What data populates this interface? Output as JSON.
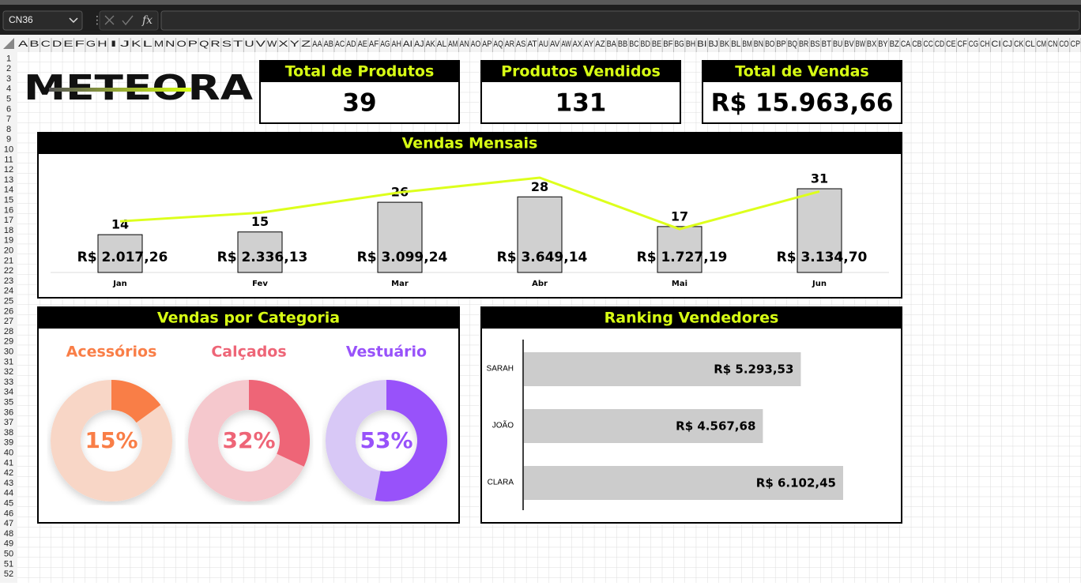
{
  "toolbar": {
    "name_box": "CN36",
    "function_label": "fx"
  },
  "sheet": {
    "columns": [
      "A",
      "B",
      "C",
      "D",
      "E",
      "F",
      "G",
      "H",
      "I",
      "J",
      "K",
      "L",
      "M",
      "N",
      "O",
      "P",
      "Q",
      "R",
      "S",
      "T",
      "U",
      "V",
      "W",
      "X",
      "Y",
      "Z",
      "AA",
      "AB",
      "AC",
      "AD",
      "AE",
      "AF",
      "AG",
      "AH",
      "AI",
      "AJ",
      "AK",
      "AL",
      "AM",
      "AN",
      "AO",
      "AP",
      "AQ",
      "AR",
      "AS",
      "AT",
      "AU",
      "AV",
      "AW",
      "AX",
      "AY",
      "AZ",
      "BA",
      "BB",
      "BC",
      "BD",
      "BE",
      "BF",
      "BG",
      "BH",
      "BI",
      "BJ",
      "BK",
      "BL",
      "BM",
      "BN",
      "BO",
      "BP",
      "BQ",
      "BR",
      "BS",
      "BT",
      "BU",
      "BV",
      "BW",
      "BX",
      "BY",
      "BZ",
      "CA",
      "CB",
      "CC",
      "CD",
      "CE",
      "CF",
      "CG",
      "CH",
      "CI",
      "CJ",
      "CK",
      "CL",
      "CM",
      "CN",
      "CO",
      "CP"
    ],
    "rows": [
      1,
      2,
      3,
      4,
      5,
      6,
      7,
      8,
      9,
      10,
      11,
      12,
      13,
      14,
      15,
      16,
      17,
      18,
      19,
      20,
      21,
      22,
      23,
      24,
      25,
      26,
      27,
      28,
      29,
      30,
      31,
      32,
      33,
      34,
      35,
      36,
      37,
      38,
      39,
      40,
      41,
      42,
      43,
      44,
      45,
      46,
      47,
      48,
      49,
      50,
      51,
      52
    ]
  },
  "logo": "METEORA",
  "kpis": [
    {
      "title": "Total de Produtos",
      "value": 39
    },
    {
      "title": "Produtos Vendidos",
      "value": 131
    },
    {
      "title": "Total de Vendas",
      "value": 15963.66,
      "value_label": "R$  15.963,66"
    }
  ],
  "chart_data": [
    {
      "type": "combo",
      "title": "Vendas Mensais",
      "categories": [
        "Jan",
        "Fev",
        "Mar",
        "Abr",
        "Mai",
        "Jun"
      ],
      "series": [
        {
          "type": "bar",
          "color": "#d0d0d0",
          "values": [
            14,
            15,
            26,
            28,
            17,
            31
          ]
        },
        {
          "type": "line",
          "color": "#ddff1c",
          "values": [
            2017.26,
            2336.13,
            3099.24,
            3649.14,
            1727.19,
            3134.7
          ],
          "value_labels": [
            "R$ 2.017,26",
            "R$ 2.336,13",
            "R$ 3.099,24",
            "R$ 3.649,14",
            "R$ 1.727,19",
            "R$ 3.134,70"
          ]
        }
      ]
    },
    {
      "type": "donut",
      "title": "Vendas por Categoria",
      "categories": [
        "Acessórios",
        "Calçados",
        "Vestuário"
      ],
      "values": [
        15,
        32,
        53
      ],
      "value_labels": [
        "15%",
        "32%",
        "53%"
      ],
      "colors": [
        "#f97e47",
        "#ee6577",
        "#9852fa"
      ],
      "track_colors": [
        "#f8d6c6",
        "#f5c8cd",
        "#d8c8f6"
      ]
    },
    {
      "type": "hbar",
      "title": "Ranking Vendedores",
      "categories": [
        "SARAH",
        "JOÃO",
        "CLARA"
      ],
      "values": [
        5293.53,
        4567.68,
        6102.45
      ],
      "value_labels": [
        "R$ 5.293,53",
        "R$ 4.567,68",
        "R$ 6.102,45"
      ],
      "color": "#cccccc"
    }
  ]
}
